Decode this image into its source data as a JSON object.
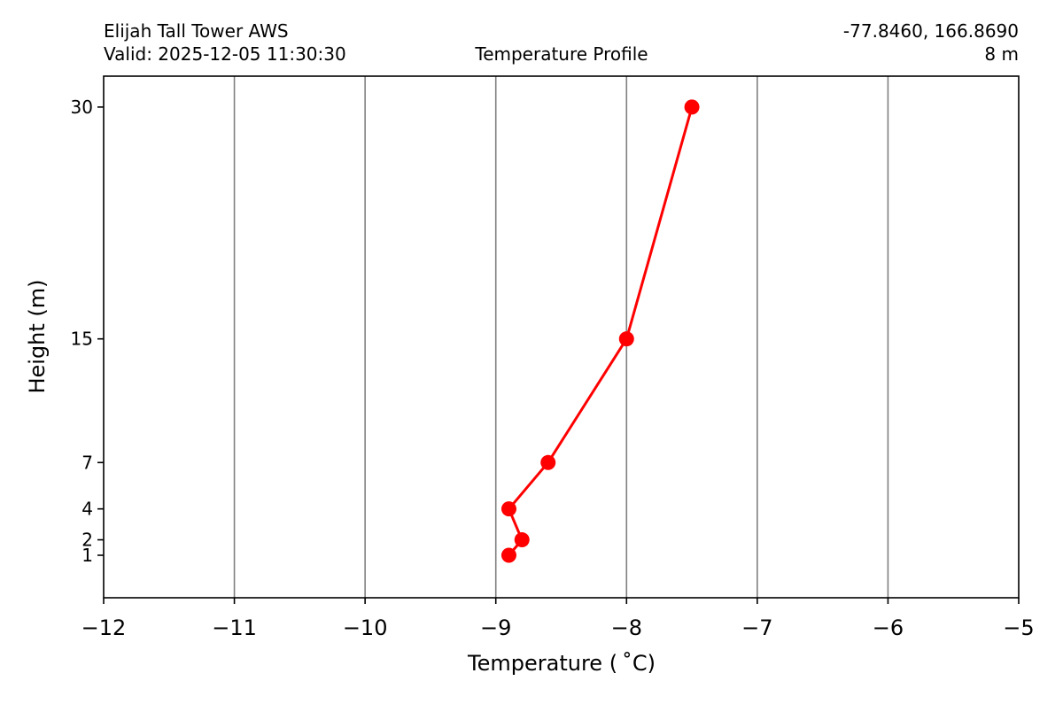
{
  "header": {
    "station_name": "Elijah Tall Tower AWS",
    "valid_time": "Valid: 2025-12-05 11:30:30",
    "plot_title": "Temperature Profile",
    "coordinates": "-77.8460, 166.8690",
    "elevation": "8 m"
  },
  "chart_data": {
    "type": "line",
    "title": "Temperature Profile",
    "xlabel": "Temperature ($^\\circ$C)",
    "xlabel_display": "Temperature ( ˚C)",
    "ylabel": "Height (m)",
    "xlim": [
      -12,
      -5
    ],
    "ylim": [
      -1.75,
      32.0
    ],
    "x_ticks": [
      -12,
      -11,
      -10,
      -9,
      -8,
      -7,
      -6,
      -5
    ],
    "x_tick_labels": [
      "−12",
      "−11",
      "−10",
      "−9",
      "−8",
      "−7",
      "−6",
      "−5"
    ],
    "y_ticks": [
      1,
      2,
      4,
      7,
      15,
      30
    ],
    "y_tick_labels": [
      "1",
      "2",
      "4",
      "7",
      "15",
      "30"
    ],
    "grid": "vertical",
    "grid_color": "#808080",
    "series": [
      {
        "color": "#ff0000",
        "marker": "circle",
        "points": [
          {
            "height": 1,
            "temperature": -8.9
          },
          {
            "height": 2,
            "temperature": -8.8
          },
          {
            "height": 4,
            "temperature": -8.9
          },
          {
            "height": 7,
            "temperature": -8.6
          },
          {
            "height": 15,
            "temperature": -8.0
          },
          {
            "height": 30,
            "temperature": -7.5
          }
        ]
      }
    ]
  }
}
